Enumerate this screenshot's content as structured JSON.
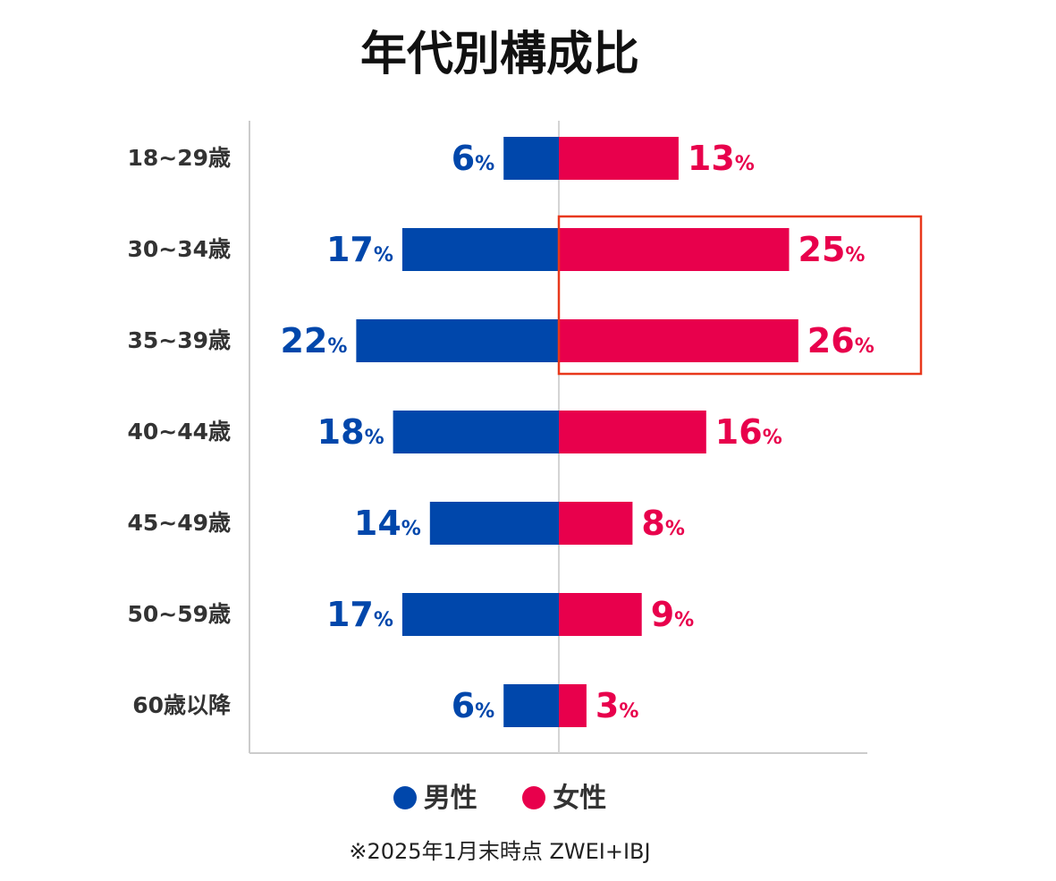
{
  "chart_data": {
    "type": "bar",
    "title": "年代別構成比",
    "categories": [
      "18~29歳",
      "30~34歳",
      "35~39歳",
      "40~44歳",
      "45~49歳",
      "50~59歳",
      "60歳以降"
    ],
    "series": [
      {
        "name": "男性",
        "values": [
          6,
          17,
          22,
          18,
          14,
          17,
          6
        ],
        "color": "#0047AB"
      },
      {
        "name": "女性",
        "values": [
          13,
          25,
          26,
          16,
          8,
          9,
          3
        ],
        "color": "#E8004C"
      }
    ],
    "unit": "%",
    "orientation": "horizontal-diverging",
    "highlight_categories": [
      "30~34歳",
      "35~39歳"
    ],
    "highlight_series": "女性",
    "highlight_color": "#E8381C",
    "legend_position": "bottom",
    "grid": false,
    "note": "※2025年1月末時点 ZWEI+IBJ"
  }
}
